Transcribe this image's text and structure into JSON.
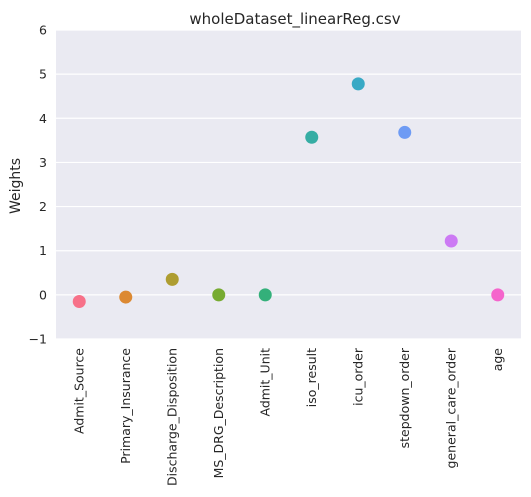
{
  "chart_data": {
    "type": "scatter",
    "title": "wholeDataset_linearReg.csv",
    "xlabel": "",
    "ylabel": "Weights",
    "ylim": [
      -1,
      6
    ],
    "yticks": [
      "−1",
      "0",
      "1",
      "2",
      "3",
      "4",
      "5",
      "6"
    ],
    "grid": true,
    "background": "#eaeaf2",
    "categories": [
      "Admit_Source",
      "Primary_Insurance",
      "Discharge_Disposition",
      "MS_DRG_Description",
      "Admit_Unit",
      "iso_result",
      "icu_order",
      "stepdown_order",
      "general_care_order",
      "age"
    ],
    "values": [
      -0.15,
      -0.05,
      0.35,
      0.0,
      0.0,
      3.57,
      4.78,
      3.68,
      1.22,
      0.0
    ],
    "colors": [
      "#f77189",
      "#dc8932",
      "#ae9d31",
      "#77ab31",
      "#33b07a",
      "#36ada4",
      "#38a9c5",
      "#6e9bf4",
      "#cc7af4",
      "#f565cc"
    ]
  }
}
